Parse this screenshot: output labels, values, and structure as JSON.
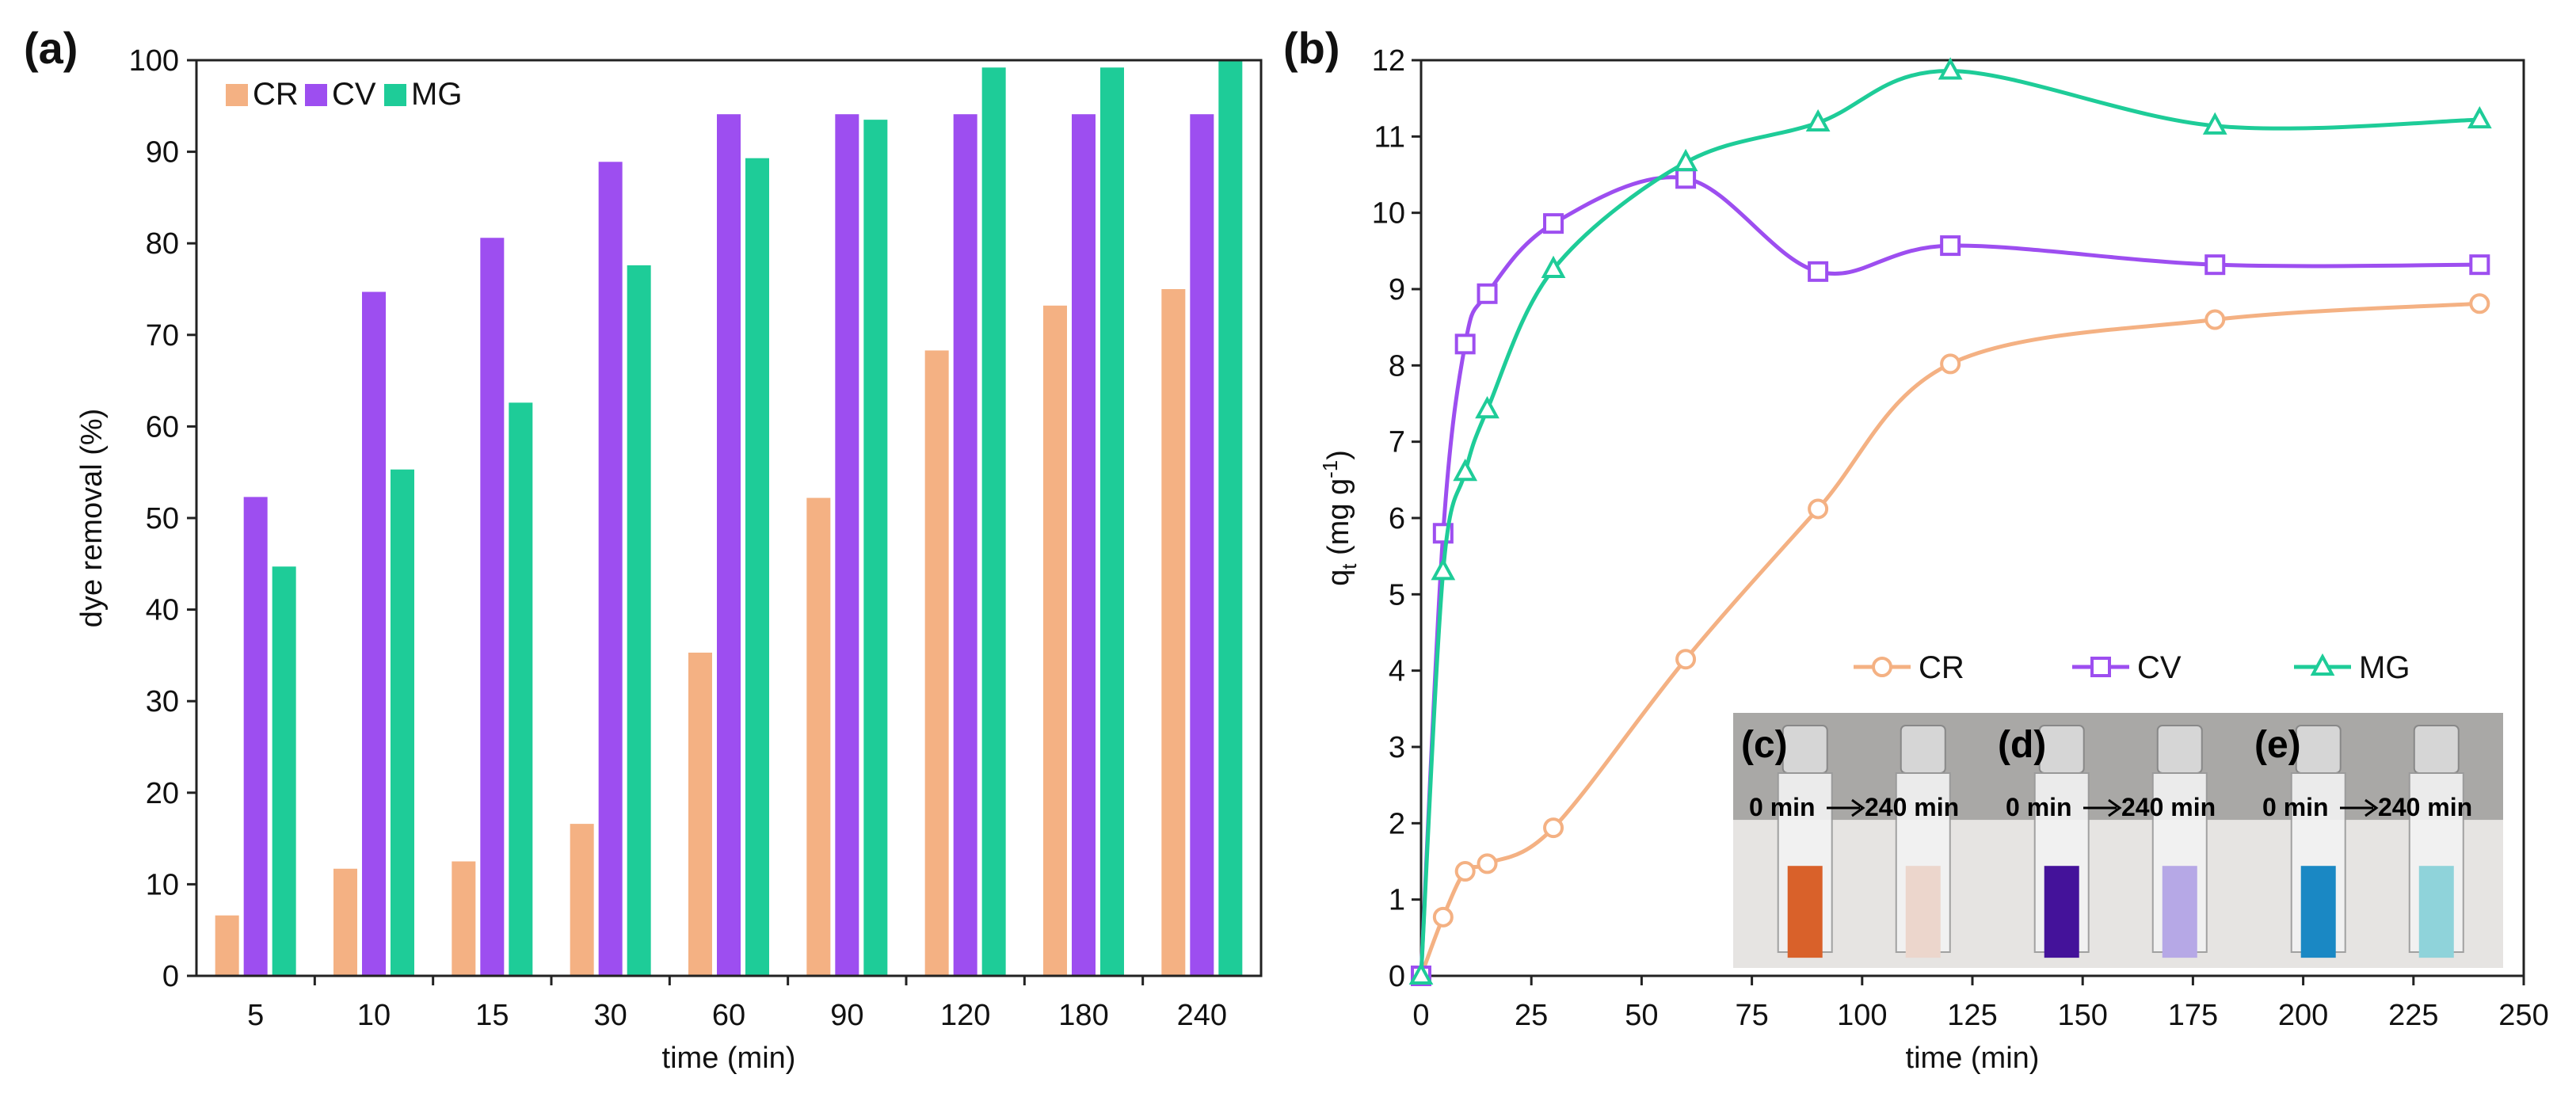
{
  "colors": {
    "CR": "#f4b183",
    "CV": "#9d4ef0",
    "MG": "#1ecc98"
  },
  "panel_labels": {
    "a": "(a)",
    "b": "(b)",
    "c": "(c)",
    "d": "(d)",
    "e": "(e)"
  },
  "chart_data": [
    {
      "type": "bar",
      "panel": "(a)",
      "xlabel": "time (min)",
      "ylabel": "dye removal (%)",
      "ylim": [
        0,
        100
      ],
      "yticks": [
        0,
        10,
        20,
        30,
        40,
        50,
        60,
        70,
        80,
        90,
        100
      ],
      "categories": [
        "5",
        "10",
        "15",
        "30",
        "60",
        "90",
        "120",
        "180",
        "240"
      ],
      "legend_position": "top-left",
      "series": [
        {
          "name": "CR",
          "values": [
            6.6,
            11.7,
            12.5,
            16.6,
            35.3,
            52.2,
            68.3,
            73.2,
            75.0
          ]
        },
        {
          "name": "CV",
          "values": [
            52.3,
            74.7,
            80.6,
            88.9,
            94.1,
            94.1,
            94.1,
            94.1,
            94.1
          ]
        },
        {
          "name": "MG",
          "values": [
            44.7,
            55.3,
            62.6,
            77.6,
            89.3,
            93.5,
            99.2,
            99.2,
            100.0
          ]
        }
      ]
    },
    {
      "type": "line",
      "panel": "(b)",
      "xlabel": "time (min)",
      "ylabel_main": "q",
      "ylabel_sub": "t",
      "ylabel_unit": " (mg g",
      "ylabel_sup": "-1",
      "ylabel_end": ")",
      "xlim": [
        0,
        250
      ],
      "ylim": [
        0,
        12
      ],
      "xticks": [
        0,
        25,
        50,
        75,
        100,
        125,
        150,
        175,
        200,
        225,
        250
      ],
      "yticks": [
        0,
        1,
        2,
        3,
        4,
        5,
        6,
        7,
        8,
        9,
        10,
        11,
        12
      ],
      "legend_position": "middle-right",
      "series": [
        {
          "name": "CR",
          "marker": "circle",
          "x": [
            0,
            5,
            10,
            15,
            30,
            60,
            90,
            120,
            180,
            240
          ],
          "y": [
            0,
            0.77,
            1.37,
            1.47,
            1.94,
            4.15,
            6.12,
            8.02,
            8.6,
            8.81
          ]
        },
        {
          "name": "CV",
          "marker": "square",
          "x": [
            0,
            5,
            10,
            15,
            30,
            60,
            90,
            120,
            180,
            240
          ],
          "y": [
            0,
            5.8,
            8.28,
            8.94,
            9.86,
            10.45,
            9.23,
            9.57,
            9.32,
            9.32
          ]
        },
        {
          "name": "MG",
          "marker": "triangle",
          "x": [
            0,
            5,
            10,
            15,
            30,
            60,
            90,
            120,
            180,
            240
          ],
          "y": [
            0,
            5.3,
            6.6,
            7.42,
            9.26,
            10.66,
            11.18,
            11.86,
            11.14,
            11.22
          ]
        }
      ]
    }
  ],
  "inset_photos": [
    {
      "label": "(c)",
      "dye": "CR",
      "text_start": "0 min",
      "text_end": "240 min",
      "before_color": "#d9612a",
      "after_color": "#ecd6cc"
    },
    {
      "label": "(d)",
      "dye": "CV",
      "text_start": "0 min",
      "text_end": "240 min",
      "before_color": "#44129a",
      "after_color": "#b6a8e6"
    },
    {
      "label": "(e)",
      "dye": "MG",
      "text_start": "0 min",
      "text_end": "240 min",
      "before_color": "#1a88c4",
      "after_color": "#8fd3da"
    }
  ]
}
